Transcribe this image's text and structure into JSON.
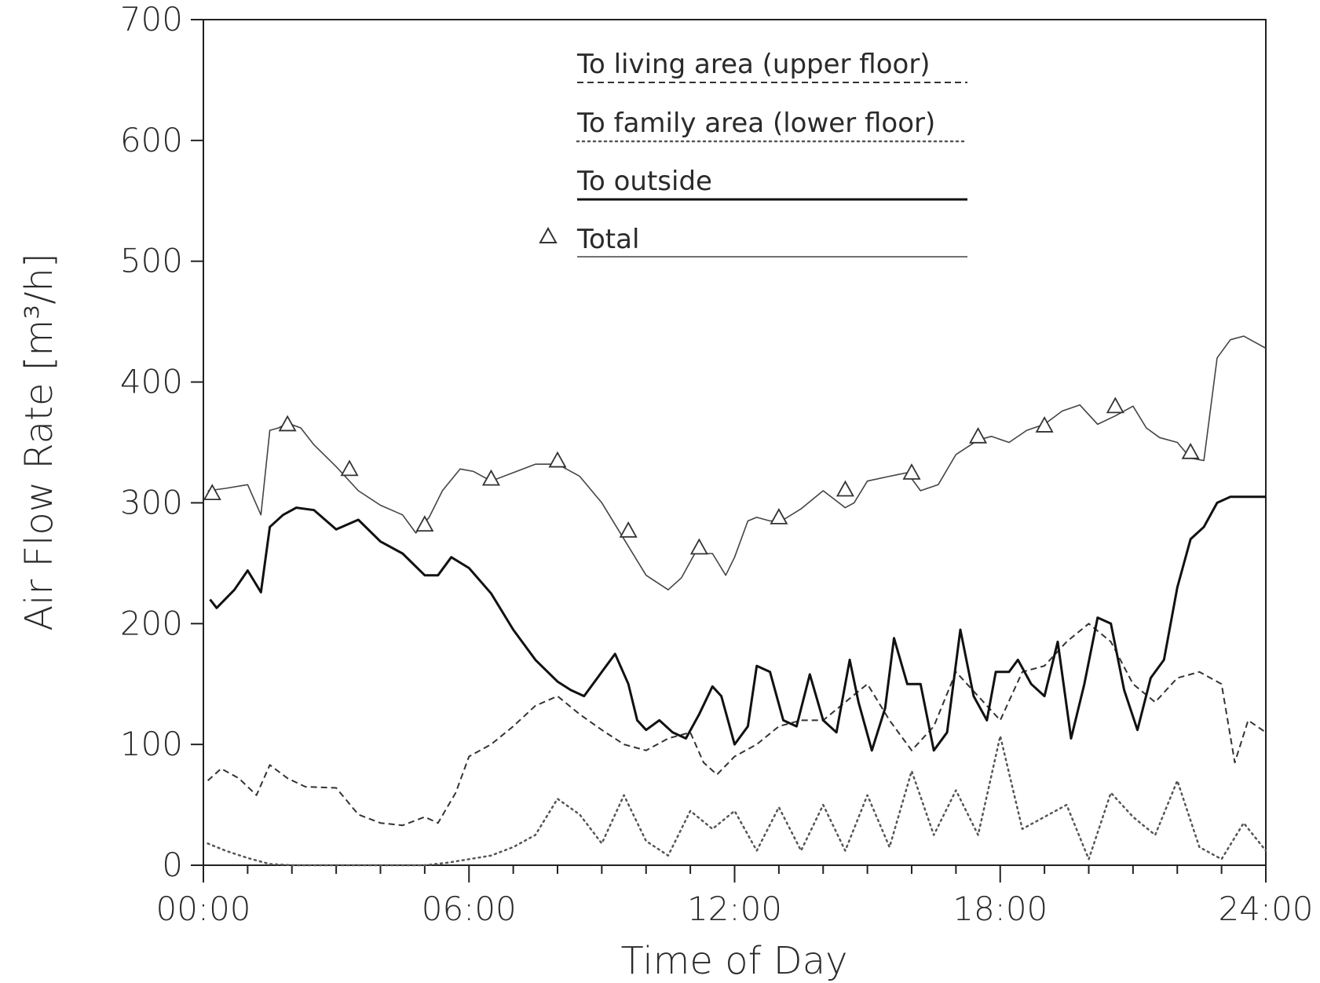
{
  "chart_data": {
    "type": "line",
    "title": "",
    "xlabel": "Time of Day",
    "ylabel": "Air Flow Rate [m³/h]",
    "xlim": [
      0,
      24
    ],
    "ylim": [
      0,
      700
    ],
    "x_tick_labels": [
      "00:00",
      "06:00",
      "12:00",
      "18:00",
      "24:00"
    ],
    "y_tick_labels": [
      "0",
      "100",
      "200",
      "300",
      "400",
      "500",
      "600",
      "700"
    ],
    "legend_position": "top-center",
    "grid": false,
    "series": [
      {
        "name": "To living area (upper floor)",
        "style": "dashed",
        "color": "#333333",
        "x": [
          0.1,
          0.4,
          0.8,
          1.2,
          1.5,
          1.9,
          2.3,
          3.0,
          3.5,
          4.0,
          4.5,
          5.0,
          5.3,
          5.7,
          6.0,
          6.5,
          7.0,
          7.5,
          8.0,
          8.5,
          9.0,
          9.5,
          10.0,
          10.5,
          11.0,
          11.3,
          11.6,
          12.0,
          12.5,
          13.0,
          13.5,
          14.0,
          14.5,
          15.0,
          15.5,
          16.0,
          16.5,
          17.0,
          17.5,
          18.0,
          18.5,
          19.0,
          19.5,
          20.0,
          20.5,
          21.0,
          21.5,
          22.0,
          22.5,
          23.0,
          23.3,
          23.6,
          24.0
        ],
        "values": [
          70,
          80,
          72,
          58,
          83,
          72,
          65,
          64,
          42,
          35,
          33,
          40,
          35,
          60,
          90,
          100,
          115,
          132,
          140,
          125,
          112,
          100,
          95,
          105,
          110,
          85,
          75,
          90,
          100,
          115,
          120,
          120,
          135,
          150,
          120,
          95,
          115,
          160,
          140,
          120,
          160,
          165,
          185,
          200,
          185,
          150,
          135,
          155,
          160,
          150,
          85,
          120,
          110
        ]
      },
      {
        "name": "To family area (lower floor)",
        "style": "dotted",
        "color": "#555555",
        "x": [
          0.1,
          0.5,
          1.0,
          1.5,
          2.0,
          3.0,
          4.0,
          5.0,
          5.5,
          6.0,
          6.5,
          7.0,
          7.5,
          8.0,
          8.5,
          9.0,
          9.5,
          10.0,
          10.5,
          11.0,
          11.5,
          12.0,
          12.5,
          13.0,
          13.5,
          14.0,
          14.5,
          15.0,
          15.5,
          16.0,
          16.5,
          17.0,
          17.5,
          18.0,
          18.5,
          19.0,
          19.5,
          20.0,
          20.5,
          21.0,
          21.5,
          22.0,
          22.5,
          23.0,
          23.5,
          24.0
        ],
        "values": [
          18,
          12,
          6,
          1,
          0,
          0,
          0,
          0,
          2,
          5,
          8,
          15,
          25,
          55,
          42,
          18,
          58,
          20,
          8,
          45,
          30,
          45,
          12,
          48,
          12,
          50,
          12,
          58,
          15,
          78,
          25,
          62,
          25,
          107,
          30,
          40,
          50,
          5,
          60,
          40,
          25,
          70,
          15,
          5,
          35,
          12
        ]
      },
      {
        "name": "To outside",
        "style": "solid-thick",
        "color": "#111111",
        "x": [
          0.15,
          0.3,
          0.7,
          1.0,
          1.3,
          1.5,
          1.8,
          2.1,
          2.5,
          3.0,
          3.5,
          4.0,
          4.5,
          5.0,
          5.3,
          5.6,
          6.0,
          6.5,
          7.0,
          7.5,
          8.0,
          8.3,
          8.6,
          9.0,
          9.3,
          9.6,
          9.8,
          10.0,
          10.3,
          10.6,
          10.9,
          11.2,
          11.5,
          11.7,
          12.0,
          12.3,
          12.5,
          12.8,
          13.1,
          13.4,
          13.7,
          14.0,
          14.3,
          14.6,
          14.8,
          15.1,
          15.4,
          15.6,
          15.9,
          16.2,
          16.5,
          16.8,
          17.1,
          17.4,
          17.7,
          17.9,
          18.2,
          18.4,
          18.7,
          19.0,
          19.3,
          19.6,
          19.9,
          20.2,
          20.5,
          20.8,
          21.1,
          21.4,
          21.7,
          22.0,
          22.3,
          22.6,
          22.9,
          23.2,
          23.5,
          23.8,
          24.0
        ],
        "values": [
          220,
          213,
          228,
          244,
          226,
          280,
          290,
          296,
          294,
          278,
          286,
          268,
          258,
          240,
          240,
          255,
          246,
          225,
          195,
          170,
          152,
          145,
          140,
          160,
          175,
          150,
          120,
          112,
          120,
          110,
          105,
          125,
          148,
          140,
          100,
          115,
          165,
          160,
          120,
          115,
          158,
          120,
          110,
          170,
          135,
          95,
          130,
          188,
          150,
          150,
          95,
          110,
          195,
          140,
          120,
          160,
          160,
          170,
          150,
          140,
          185,
          105,
          150,
          205,
          200,
          145,
          112,
          155,
          170,
          230,
          270,
          280,
          300,
          305,
          305,
          305,
          305
        ]
      },
      {
        "name": "Total",
        "style": "solid-thin-with-triangles",
        "color": "#444444",
        "x": [
          0.1,
          0.5,
          1.0,
          1.3,
          1.5,
          1.7,
          1.9,
          2.2,
          2.5,
          3.0,
          3.5,
          4.0,
          4.5,
          4.8,
          5.1,
          5.4,
          5.8,
          6.1,
          6.5,
          7.0,
          7.5,
          8.0,
          8.5,
          9.0,
          9.5,
          10.0,
          10.5,
          10.8,
          11.1,
          11.5,
          11.8,
          12.0,
          12.3,
          12.5,
          12.8,
          13.1,
          13.5,
          14.0,
          14.5,
          14.7,
          15.0,
          15.5,
          15.9,
          16.2,
          16.6,
          17.0,
          17.5,
          17.8,
          18.2,
          18.6,
          19.0,
          19.4,
          19.8,
          20.2,
          20.6,
          21.0,
          21.3,
          21.6,
          22.0,
          22.3,
          22.6,
          22.9,
          23.2,
          23.5,
          23.8,
          24.0
        ],
        "values": [
          310,
          312,
          315,
          290,
          360,
          362,
          366,
          362,
          348,
          330,
          310,
          298,
          290,
          275,
          288,
          310,
          328,
          326,
          318,
          325,
          332,
          332,
          322,
          300,
          270,
          240,
          228,
          238,
          258,
          258,
          240,
          255,
          285,
          288,
          285,
          286,
          295,
          310,
          296,
          300,
          318,
          322,
          325,
          310,
          315,
          340,
          352,
          355,
          350,
          360,
          365,
          376,
          381,
          365,
          372,
          380,
          362,
          354,
          350,
          337,
          335,
          420,
          435,
          438,
          432,
          428
        ]
      }
    ],
    "total_markers": {
      "x": [
        0.2,
        1.9,
        3.3,
        5.0,
        6.5,
        8.0,
        9.6,
        11.2,
        13.0,
        14.5,
        16.0,
        17.5,
        19.0,
        20.6,
        22.3
      ],
      "values": [
        308,
        365,
        328,
        282,
        320,
        335,
        277,
        263,
        288,
        311,
        325,
        355,
        364,
        380,
        342
      ]
    }
  }
}
